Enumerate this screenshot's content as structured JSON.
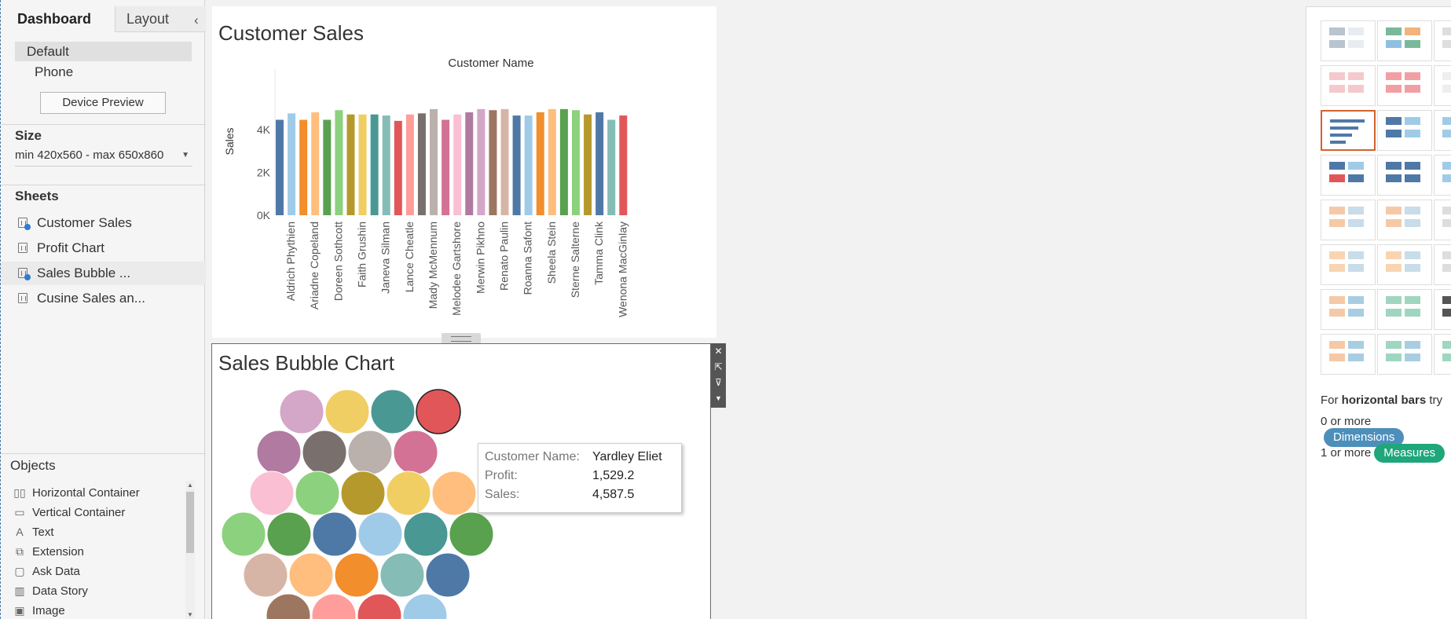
{
  "dashboard_pane": {
    "tabs": [
      {
        "label": "Dashboard"
      },
      {
        "label": "Layout"
      }
    ],
    "collapse_glyph": "‹",
    "device": {
      "items": [
        {
          "label": "Default"
        },
        {
          "label": "Phone"
        }
      ],
      "preview_button": "Device Preview"
    },
    "size": {
      "title": "Size",
      "value": "min 420x560 - max 650x860"
    },
    "sheets": {
      "title": "Sheets",
      "items": [
        {
          "label": "Customer Sales"
        },
        {
          "label": "Profit Chart"
        },
        {
          "label": "Sales Bubble ..."
        },
        {
          "label": "Cusine Sales an..."
        }
      ]
    },
    "objects": {
      "title": "Objects",
      "items": [
        {
          "label": "Horizontal Container",
          "icon": "horizontal-container-icon"
        },
        {
          "label": "Vertical Container",
          "icon": "vertical-container-icon"
        },
        {
          "label": "Text",
          "icon": "text-icon"
        },
        {
          "label": "Extension",
          "icon": "extension-icon"
        },
        {
          "label": "Ask Data",
          "icon": "ask-data-icon"
        },
        {
          "label": "Data Story",
          "icon": "data-story-icon"
        },
        {
          "label": "Image",
          "icon": "image-icon"
        }
      ]
    }
  },
  "customer_sales": {
    "title": "Customer Sales",
    "header_label": "Customer Name",
    "y_label": "Sales",
    "y_ticks": [
      "0K",
      "2K",
      "4K"
    ],
    "visible_x_labels": [
      "Aldrich Phythien",
      "Ariadne Copeland",
      "Doreen Sothcott",
      "Faith Grushin",
      "Janeva Silman",
      "Lance Cheatle",
      "Mady McMennum",
      "Melodee Gartshore",
      "Merwin Pikhno",
      "Renato Paulin",
      "Roanna Safont",
      "Sheela Stein",
      "Sterne Salterne",
      "Tamma Clink",
      "Wenona MacGinlay"
    ]
  },
  "chart_data": [
    {
      "type": "bar",
      "title": "Customer Sales",
      "xlabel": "Customer Name",
      "ylabel": "Sales",
      "ylim": [
        0,
        5000
      ],
      "grid": false,
      "x_tick_labels": [
        "Aldrich Phythien",
        "Ariadne Copeland",
        "Doreen Sothcott",
        "Faith Grushin",
        "Janeva Silman",
        "Lance Cheatle",
        "Mady McMennum",
        "Melodee Gartshore",
        "Merwin Pikhno",
        "Renato Paulin",
        "Roanna Safont",
        "Sheela Stein",
        "Sterne Salterne",
        "Tamma Clink",
        "Wenona MacGinlay"
      ],
      "values": [
        4450,
        4750,
        4450,
        4800,
        4450,
        4900,
        4700,
        4700,
        4700,
        4650,
        4400,
        4700,
        4750,
        4950,
        4450,
        4700,
        4800,
        4950,
        4900,
        4950,
        4650,
        4650,
        4800,
        4950,
        4950,
        4900,
        4700,
        4800,
        4450,
        4650
      ],
      "colors": [
        "#4e79a7",
        "#a0cbe8",
        "#f28e2b",
        "#ffbe7d",
        "#59a14f",
        "#8cd17d",
        "#b6992d",
        "#f1ce63",
        "#499894",
        "#86bcb6",
        "#e15759",
        "#ff9d9a",
        "#79706e",
        "#bab0ac",
        "#d37295",
        "#fabfd2",
        "#b07aa1",
        "#d4a6c8",
        "#9d7660",
        "#d7b5a6",
        "#4e79a7",
        "#a0cbe8",
        "#f28e2b",
        "#ffbe7d",
        "#59a14f",
        "#8cd17d",
        "#b6992d",
        "#4e79a7",
        "#86bcb6",
        "#e15759"
      ]
    },
    {
      "type": "scatter",
      "title": "Sales Bubble Chart",
      "bubble_colors": [
        [
          "#d4a6c8",
          "#f1ce63",
          "#499894",
          "#e15759"
        ],
        [
          "#b07aa1",
          "#79706e",
          "#bab0ac",
          "#d37295"
        ],
        [
          "#fabfd2",
          "#8cd17d",
          "#b6992d",
          "#f1ce63",
          "#ffbe7d"
        ],
        [
          "#8cd17d",
          "#59a14f",
          "#4e79a7",
          "#a0cbe8",
          "#499894",
          "#59a14f"
        ],
        [
          "#d7b5a6",
          "#ffbe7d",
          "#f28e2b",
          "#86bcb6",
          "#4e79a7"
        ],
        [
          "#9d7660",
          "#ff9d9a",
          "#e15759",
          "#a0cbe8"
        ]
      ],
      "highlighted": "Yardley Eliet"
    }
  ],
  "bubble": {
    "title": "Sales Bubble Chart",
    "tooltip": {
      "rows": [
        {
          "key": "Customer Name:",
          "value": "Yardley Eliet"
        },
        {
          "key": "Profit:",
          "value": "1,529.2"
        },
        {
          "key": "Sales:",
          "value": "4,587.5"
        }
      ]
    },
    "toolbar": [
      "close-icon",
      "open-icon",
      "filter-icon",
      "more-icon"
    ]
  },
  "show_me": {
    "hint_prefix": "For ",
    "hint_bold": "horizontal bars",
    "hint_suffix": " try",
    "dimensions": {
      "prefix": "0 or more",
      "pill": "Dimensions",
      "color": "#4d8fba"
    },
    "measures": {
      "prefix": "1 or more",
      "pill": "Measures",
      "color": "#1fa67a"
    },
    "selected_thumb": "horizontal-bars",
    "accent": "#d4622d"
  }
}
